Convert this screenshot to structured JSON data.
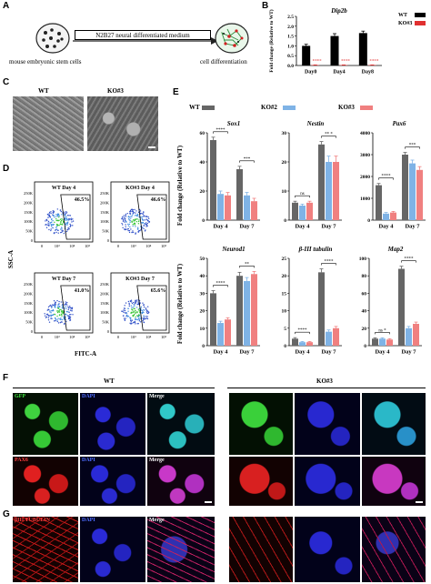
{
  "panels": {
    "a": "A",
    "b": "B",
    "c": "C",
    "d": "D",
    "e": "E",
    "f": "F",
    "g": "G"
  },
  "panel_a": {
    "medium_label": "N2B27 neural differentiated medium",
    "left_caption": "mouse embryonic stem cells",
    "right_caption": "cell differentiation"
  },
  "panel_c": {
    "wt": "WT",
    "ko3": "KO#3"
  },
  "panel_d": {
    "x_axis": "FITC-A",
    "y_axis": "SSC-A",
    "yticks": [
      "250K",
      "200K",
      "150K",
      "100K",
      "50K",
      "0"
    ],
    "xticks": [
      "0",
      "10³",
      "10⁴",
      "10⁵"
    ],
    "plots": [
      {
        "title": "WT Day 4",
        "pct": "46.5%"
      },
      {
        "title": "KO#3 Day 4",
        "pct": "46.6%"
      },
      {
        "title": "WT Day 7",
        "pct": "41.0%"
      },
      {
        "title": "KO#3 Day 7",
        "pct": "65.6%"
      }
    ]
  },
  "panel_e_legend": {
    "wt": "WT",
    "ko2": "KO#2",
    "ko3": "KO#3"
  },
  "panel_e_ylabel": "Fold change (Relative to WT)",
  "panel_b_ylabel": "Fold change (Relative to WT)",
  "panel_f": {
    "wt": "WT",
    "ko3": "KO#3"
  },
  "panel_f_rows": [
    [
      "GFP",
      "DAPI",
      "Merge"
    ],
    [
      "PAX6",
      "DAPI",
      "Merge"
    ]
  ],
  "panel_g_row": [
    "βIII TUBULIN",
    "DAPI",
    "Merge"
  ],
  "colors": {
    "wt": "#666666",
    "ko2": "#7fb3e6",
    "ko3": "#f08080",
    "b_wt": "#000000",
    "b_ko3": "#e03030"
  },
  "chart_data": [
    {
      "id": "B",
      "type": "bar",
      "title": "Dip2b",
      "categories": [
        "Day0",
        "Day4",
        "Day8"
      ],
      "ylim": [
        0,
        2.5
      ],
      "yticks": [
        0.0,
        0.5,
        1.0,
        1.5,
        2.0,
        2.5
      ],
      "ytick_labels": [
        "0.0",
        "0.5",
        "1.0",
        "1.5",
        "2.0",
        "2.5"
      ],
      "ylabel": "Fold change (Relative to WT)",
      "series": [
        {
          "name": "WT",
          "values": [
            1.0,
            1.5,
            1.65
          ],
          "errors": [
            0.08,
            0.12,
            0.1
          ]
        },
        {
          "name": "KO#3",
          "values": [
            0.02,
            0.02,
            0.02
          ],
          "errors": [
            0.01,
            0.01,
            0.01
          ]
        }
      ],
      "sig": [
        "****",
        "****",
        "****"
      ]
    },
    {
      "id": "E1",
      "type": "bar",
      "title": "Sox1",
      "categories": [
        "Day 4",
        "Day 7"
      ],
      "ylim": [
        0,
        60
      ],
      "yticks": [
        0,
        20,
        40,
        60
      ],
      "ytick_labels": [
        "0",
        "20",
        "40",
        "60"
      ],
      "series": [
        {
          "name": "WT",
          "values": [
            55,
            35
          ],
          "errors": [
            2,
            2
          ]
        },
        {
          "name": "KO#2",
          "values": [
            18,
            17
          ],
          "errors": [
            2,
            2
          ]
        },
        {
          "name": "KO#3",
          "values": [
            17,
            13
          ],
          "errors": [
            2,
            2
          ]
        }
      ],
      "sig": [
        "****",
        "***"
      ]
    },
    {
      "id": "E2",
      "type": "bar",
      "title": "Nestin",
      "categories": [
        "Day 4",
        "Day 7"
      ],
      "ylim": [
        0,
        30
      ],
      "yticks": [
        0,
        10,
        20,
        30
      ],
      "ytick_labels": [
        "0",
        "10",
        "20",
        "30"
      ],
      "series": [
        {
          "name": "WT",
          "values": [
            6,
            26
          ],
          "errors": [
            0.5,
            1
          ]
        },
        {
          "name": "KO#2",
          "values": [
            5,
            20
          ],
          "errors": [
            0.5,
            2
          ]
        },
        {
          "name": "KO#3",
          "values": [
            6,
            20
          ],
          "errors": [
            0.5,
            2
          ]
        }
      ],
      "sig": [
        "ns",
        "** *"
      ]
    },
    {
      "id": "E3",
      "type": "bar",
      "title": "Pax6",
      "categories": [
        "Day 4",
        "Day 7"
      ],
      "ylim": [
        0,
        4000
      ],
      "yticks": [
        0,
        1000,
        2000,
        3000,
        4000
      ],
      "ytick_labels": [
        "0",
        "1000",
        "2000",
        "3000",
        "4000"
      ],
      "series": [
        {
          "name": "WT",
          "values": [
            1600,
            3000
          ],
          "errors": [
            80,
            100
          ]
        },
        {
          "name": "KO#2",
          "values": [
            300,
            2600
          ],
          "errors": [
            50,
            150
          ]
        },
        {
          "name": "KO#3",
          "values": [
            350,
            2300
          ],
          "errors": [
            50,
            150
          ]
        }
      ],
      "sig": [
        "****",
        "***"
      ]
    },
    {
      "id": "E4",
      "type": "bar",
      "title": "Neurod1",
      "categories": [
        "Day 4",
        "Day 7"
      ],
      "ylim": [
        0,
        50
      ],
      "yticks": [
        0,
        10,
        20,
        30,
        40,
        50
      ],
      "ytick_labels": [
        "0",
        "10",
        "20",
        "30",
        "40",
        "50"
      ],
      "series": [
        {
          "name": "WT",
          "values": [
            30,
            40
          ],
          "errors": [
            1.5,
            2
          ]
        },
        {
          "name": "KO#2",
          "values": [
            13,
            37
          ],
          "errors": [
            1,
            2
          ]
        },
        {
          "name": "KO#3",
          "values": [
            15,
            41
          ],
          "errors": [
            1,
            1.5
          ]
        }
      ],
      "sig": [
        "****",
        "**"
      ]
    },
    {
      "id": "E5",
      "type": "bar",
      "title": "β-III tubulin",
      "categories": [
        "Day 4",
        "Day 7"
      ],
      "ylim": [
        0,
        25
      ],
      "yticks": [
        0,
        5,
        10,
        15,
        20,
        25
      ],
      "ytick_labels": [
        "0",
        "5",
        "10",
        "15",
        "20",
        "25"
      ],
      "series": [
        {
          "name": "WT",
          "values": [
            2,
            21
          ],
          "errors": [
            0.3,
            1
          ]
        },
        {
          "name": "KO#2",
          "values": [
            1,
            4
          ],
          "errors": [
            0.2,
            0.5
          ]
        },
        {
          "name": "KO#3",
          "values": [
            1,
            5
          ],
          "errors": [
            0.2,
            0.5
          ]
        }
      ],
      "sig": [
        "****",
        "****"
      ]
    },
    {
      "id": "E6",
      "type": "bar",
      "title": "Map2",
      "categories": [
        "Day 4",
        "Day 7"
      ],
      "ylim": [
        0,
        100
      ],
      "yticks": [
        0,
        20,
        40,
        60,
        80,
        100
      ],
      "ytick_labels": [
        "0",
        "20",
        "40",
        "60",
        "80",
        "100"
      ],
      "series": [
        {
          "name": "WT",
          "values": [
            8,
            88
          ],
          "errors": [
            1,
            3
          ]
        },
        {
          "name": "KO#2",
          "values": [
            8,
            20
          ],
          "errors": [
            1,
            2
          ]
        },
        {
          "name": "KO#3",
          "values": [
            7,
            25
          ],
          "errors": [
            1,
            2
          ]
        }
      ],
      "sig": [
        "ns *",
        "****"
      ]
    }
  ]
}
